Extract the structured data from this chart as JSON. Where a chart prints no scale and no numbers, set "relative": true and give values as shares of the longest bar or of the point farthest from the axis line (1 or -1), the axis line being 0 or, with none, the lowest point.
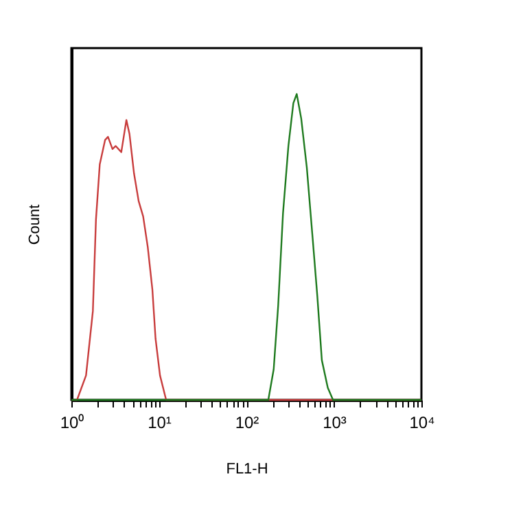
{
  "chart_data": {
    "type": "line",
    "xlabel": "FL1-H",
    "ylabel": "Count",
    "relative": true,
    "log": "x",
    "grid": false,
    "marker": "none",
    "line_style": "solid",
    "xlim": [
      1,
      10000
    ],
    "xticks": [
      {
        "value": 1,
        "label": "10⁰"
      },
      {
        "value": 2,
        "label": null
      },
      {
        "value": 3,
        "label": null
      },
      {
        "value": 4,
        "label": null
      },
      {
        "value": 5,
        "label": null
      },
      {
        "value": 6,
        "label": null
      },
      {
        "value": 7,
        "label": null
      },
      {
        "value": 8,
        "label": null
      },
      {
        "value": 9,
        "label": null
      },
      {
        "value": 10,
        "label": "10¹"
      },
      {
        "value": 20,
        "label": null
      },
      {
        "value": 30,
        "label": null
      },
      {
        "value": 40,
        "label": null
      },
      {
        "value": 50,
        "label": null
      },
      {
        "value": 60,
        "label": null
      },
      {
        "value": 70,
        "label": null
      },
      {
        "value": 80,
        "label": null
      },
      {
        "value": 90,
        "label": null
      },
      {
        "value": 100,
        "label": "10²"
      },
      {
        "value": 200,
        "label": null
      },
      {
        "value": 300,
        "label": null
      },
      {
        "value": 400,
        "label": null
      },
      {
        "value": 500,
        "label": null
      },
      {
        "value": 600,
        "label": null
      },
      {
        "value": 700,
        "label": null
      },
      {
        "value": 800,
        "label": null
      },
      {
        "value": 900,
        "label": null
      },
      {
        "value": 1000,
        "label": "10³"
      },
      {
        "value": 2000,
        "label": null
      },
      {
        "value": 3000,
        "label": null
      },
      {
        "value": 4000,
        "label": null
      },
      {
        "value": 5000,
        "label": null
      },
      {
        "value": 6000,
        "label": null
      },
      {
        "value": 7000,
        "label": null
      },
      {
        "value": 8000,
        "label": null
      },
      {
        "value": 9000,
        "label": null
      },
      {
        "value": 10000,
        "label": "10⁴"
      }
    ],
    "series": [
      {
        "color": "#c83c3c",
        "x": [
          1,
          1.16,
          1.47,
          1.76,
          1.91,
          2.11,
          2.43,
          2.62,
          2.95,
          3.21,
          3.72,
          4.25,
          4.61,
          5.2,
          5.87,
          6.61,
          7.46,
          8.43,
          9.16,
          10.3,
          12.1,
          10000
        ],
        "values": [
          0,
          0,
          0.08,
          0.29,
          0.59,
          0.77,
          0.85,
          0.86,
          0.82,
          0.83,
          0.81,
          0.915,
          0.87,
          0.74,
          0.65,
          0.6,
          0.5,
          0.36,
          0.2,
          0.08,
          0,
          0
        ]
      },
      {
        "color": "#1e7a1e",
        "x": [
          1,
          178,
          205,
          231,
          262,
          302,
          344,
          376,
          423,
          490,
          571,
          646,
          728,
          851,
          977,
          10000
        ],
        "values": [
          0,
          0,
          0.1,
          0.31,
          0.61,
          0.83,
          0.97,
          1,
          0.92,
          0.76,
          0.53,
          0.34,
          0.13,
          0.04,
          0,
          0
        ]
      }
    ]
  }
}
